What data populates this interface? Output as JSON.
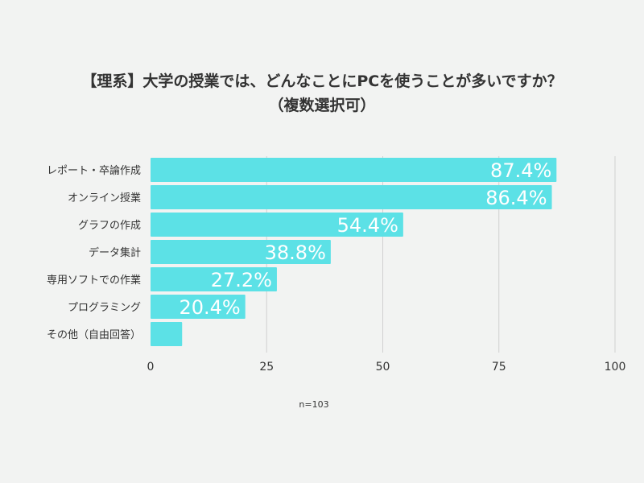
{
  "title_lines": [
    "【理系】大学の授業では、どんなことにPCを使うことが多いですか？",
    "（複数選択可）"
  ],
  "note": "n=103",
  "colors": {
    "bar": "#5ce1e6",
    "grid": "#d0d0d0",
    "text": "#333333",
    "label": "#ffffff"
  },
  "chart_data": {
    "type": "bar",
    "orientation": "horizontal",
    "title": "【理系】大学の授業では、どんなことにPCを使うことが多いですか？（複数選択可）",
    "categories": [
      "レポート・卒論作成",
      "オンライン授業",
      "グラフの作成",
      "データ集計",
      "専用ソフトでの作業",
      "プログラミング",
      "その他（自由回答）"
    ],
    "values": [
      87.4,
      86.4,
      54.4,
      38.8,
      27.2,
      20.4,
      6.8
    ],
    "value_labels": [
      "87.4%",
      "86.4%",
      "54.4%",
      "38.8%",
      "27.2%",
      "20.4%",
      ""
    ],
    "xlim": [
      0,
      100
    ],
    "xticks": [
      "0",
      "25",
      "50",
      "75",
      "100"
    ],
    "grid": true,
    "xlabel": "",
    "ylabel": ""
  }
}
